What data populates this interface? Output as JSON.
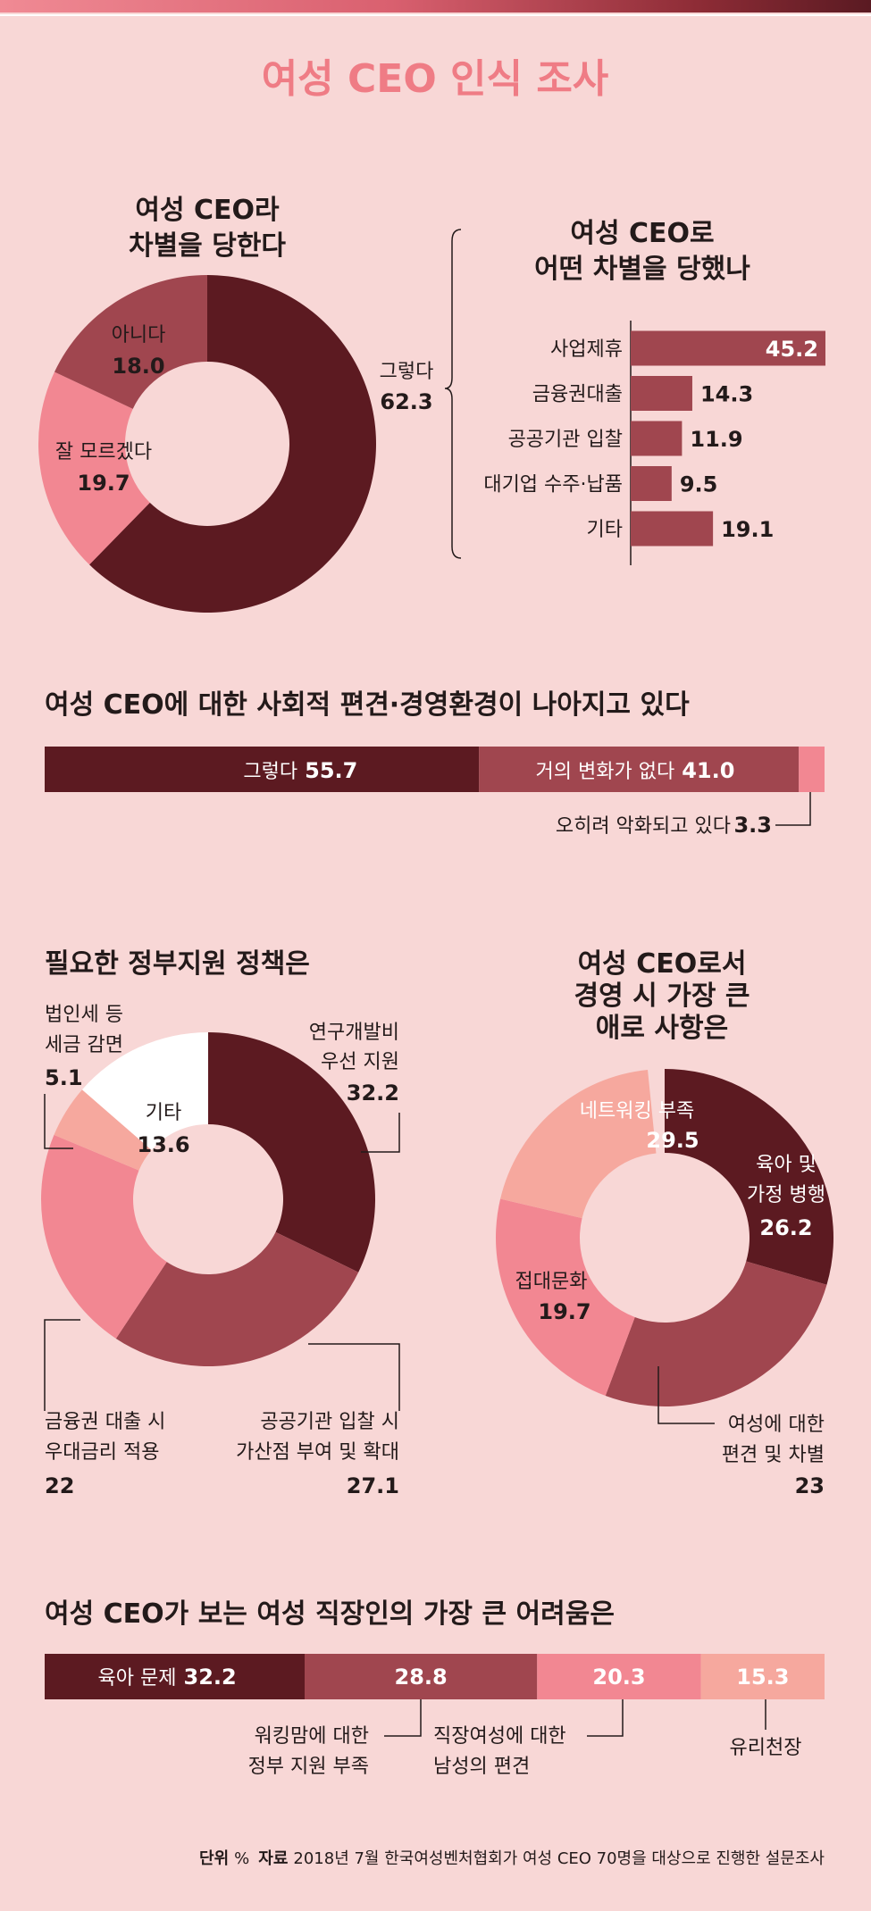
{
  "title": "여성 CEO 인식 조사",
  "colors": {
    "dark": "#5c1a21",
    "mid": "#a0464f",
    "pink": "#f28792",
    "light": "#f6a89e",
    "white": "#ffffff",
    "bg": "#f8d7d6",
    "title": "#ef7c85"
  },
  "chart_data": [
    {
      "id": "discrimination",
      "type": "pie",
      "title": [
        "여성 CEO라",
        "차별을 당한다"
      ],
      "series": [
        {
          "label": "그렇다",
          "value": 62.3,
          "value_text": "62.3"
        },
        {
          "label": "잘 모르겠다",
          "value": 19.7,
          "value_text": "19.7"
        },
        {
          "label": "아니다",
          "value": 18.0,
          "value_text": "18.0"
        }
      ]
    },
    {
      "id": "discrimination-types",
      "type": "bar",
      "title": [
        "여성 CEO로",
        "어떤 차별을 당했나"
      ],
      "categories": [
        "사업제휴",
        "금융권대출",
        "공공기관 입찰",
        "대기업 수주·납품",
        "기타"
      ],
      "values": [
        45.2,
        14.3,
        11.9,
        9.5,
        19.1
      ],
      "value_texts": [
        "45.2",
        "14.3",
        "11.9",
        "9.5",
        "19.1"
      ]
    },
    {
      "id": "bias-improvement",
      "type": "bar",
      "stacked": true,
      "title": "여성 CEO에 대한 사회적 편견·경영환경이 나아지고 있다",
      "series": [
        {
          "label": "그렇다",
          "value": 55.7,
          "value_text": "55.7"
        },
        {
          "label": "거의 변화가 없다",
          "value": 41.0,
          "value_text": "41.0"
        },
        {
          "label": "오히려 악화되고 있다",
          "value": 3.3,
          "value_text": "3.3"
        }
      ]
    },
    {
      "id": "policy",
      "type": "pie",
      "title": "필요한 정부지원 정책은",
      "series": [
        {
          "label": [
            "연구개발비",
            "우선 지원"
          ],
          "value": 32.2,
          "value_text": "32.2"
        },
        {
          "label": [
            "공공기관 입찰 시",
            "가산점 부여 및 확대"
          ],
          "value": 27.1,
          "value_text": "27.1"
        },
        {
          "label": [
            "금융권 대출 시",
            "우대금리 적용"
          ],
          "value": 22,
          "value_text": "22"
        },
        {
          "label": [
            "법인세 등",
            "세금 감면"
          ],
          "value": 5.1,
          "value_text": "5.1"
        },
        {
          "label": [
            "기타"
          ],
          "value": 13.6,
          "value_text": "13.6"
        }
      ]
    },
    {
      "id": "difficulties-ceo",
      "type": "pie",
      "title": [
        "여성 CEO로서",
        "경영 시 가장 큰",
        "애로 사항은"
      ],
      "series": [
        {
          "label": [
            "네트워킹 부족"
          ],
          "value": 29.5,
          "value_text": "29.5"
        },
        {
          "label": [
            "육아 및",
            "가정 병행"
          ],
          "value": 26.2,
          "value_text": "26.2"
        },
        {
          "label": [
            "여성에 대한",
            "편견 및 차별"
          ],
          "value": 23,
          "value_text": "23"
        },
        {
          "label": [
            "접대문화"
          ],
          "value": 19.7,
          "value_text": "19.7"
        }
      ]
    },
    {
      "id": "difficulties-workers",
      "type": "bar",
      "stacked": true,
      "title": "여성 CEO가 보는 여성 직장인의 가장 큰 어려움은",
      "series": [
        {
          "label": [
            "육아 문제"
          ],
          "value": 32.2,
          "value_text": "32.2"
        },
        {
          "label": [
            "워킹맘에 대한",
            "정부 지원 부족"
          ],
          "value": 28.8,
          "value_text": "28.8"
        },
        {
          "label": [
            "직장여성에 대한",
            "남성의 편견"
          ],
          "value": 20.3,
          "value_text": "20.3"
        },
        {
          "label": [
            "유리천장"
          ],
          "value": 15.3,
          "value_text": "15.3"
        }
      ]
    }
  ],
  "footer": {
    "unit_label": "단위",
    "unit": "%",
    "source_label": "자료",
    "source": "2018년 7월 한국여성벤처협회가 여성 CEO 70명을 대상으로 진행한 설문조사"
  }
}
